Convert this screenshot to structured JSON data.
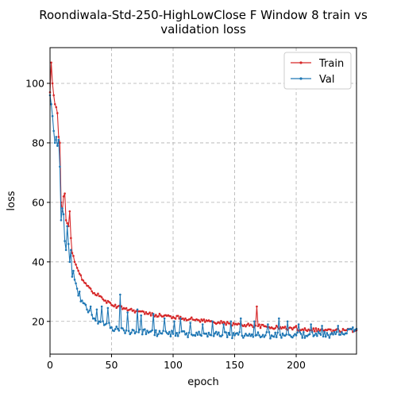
{
  "chart_data": {
    "type": "line",
    "title_lines": [
      "Roondiwala-Std-250-HighLowClose F Window 8 train vs",
      "validation loss"
    ],
    "xlabel": "epoch",
    "ylabel": "loss",
    "xlim": [
      0,
      249
    ],
    "ylim": [
      9,
      112
    ],
    "xticks": [
      0,
      50,
      100,
      150,
      200
    ],
    "yticks": [
      20,
      40,
      60,
      80,
      100
    ],
    "grid": true,
    "legend_position": "top-right",
    "series": [
      {
        "name": "Train",
        "color": "#d62728",
        "anchors": [
          [
            0,
            97
          ],
          [
            1,
            107
          ],
          [
            2,
            100
          ],
          [
            3,
            96
          ],
          [
            4,
            93
          ],
          [
            5,
            92
          ],
          [
            6,
            90
          ],
          [
            7,
            82
          ],
          [
            8,
            80
          ],
          [
            9,
            60
          ],
          [
            10,
            57
          ],
          [
            11,
            62
          ],
          [
            12,
            63
          ],
          [
            13,
            54
          ],
          [
            14,
            53
          ],
          [
            15,
            52
          ],
          [
            16,
            57
          ],
          [
            17,
            48
          ],
          [
            18,
            43
          ],
          [
            19,
            42
          ],
          [
            20,
            40
          ],
          [
            22,
            38
          ],
          [
            24,
            36
          ],
          [
            26,
            34
          ],
          [
            28,
            33
          ],
          [
            30,
            32
          ],
          [
            33,
            31
          ],
          [
            36,
            29.5
          ],
          [
            40,
            28.5
          ],
          [
            45,
            27
          ],
          [
            50,
            25.5
          ],
          [
            55,
            25
          ],
          [
            60,
            24.5
          ],
          [
            70,
            23.5
          ],
          [
            80,
            22.5
          ],
          [
            90,
            22
          ],
          [
            100,
            21.5
          ],
          [
            110,
            21
          ],
          [
            120,
            20.5
          ],
          [
            130,
            20
          ],
          [
            140,
            19.5
          ],
          [
            150,
            19
          ],
          [
            160,
            18.8
          ],
          [
            168,
            18.5
          ],
          [
            180,
            18
          ],
          [
            190,
            17.8
          ],
          [
            200,
            17.5
          ],
          [
            210,
            17.3
          ],
          [
            220,
            17.2
          ],
          [
            230,
            17
          ],
          [
            240,
            17
          ],
          [
            249,
            17
          ]
        ],
        "spikes": [
          [
            168,
            25
          ],
          [
            200,
            18.5
          ],
          [
            229,
            16
          ]
        ]
      },
      {
        "name": "Val",
        "color": "#1f77b4",
        "anchors": [
          [
            0,
            96
          ],
          [
            1,
            93
          ],
          [
            2,
            89
          ],
          [
            3,
            84
          ],
          [
            4,
            80
          ],
          [
            5,
            83
          ],
          [
            6,
            79
          ],
          [
            7,
            81
          ],
          [
            8,
            72
          ],
          [
            9,
            54
          ],
          [
            10,
            58
          ],
          [
            11,
            56
          ],
          [
            12,
            47
          ],
          [
            13,
            44
          ],
          [
            14,
            52
          ],
          [
            15,
            46
          ],
          [
            16,
            40
          ],
          [
            17,
            44
          ],
          [
            18,
            35
          ],
          [
            19,
            33
          ],
          [
            20,
            34
          ],
          [
            22,
            31
          ],
          [
            24,
            28
          ],
          [
            26,
            27
          ],
          [
            28,
            26
          ],
          [
            30,
            24
          ],
          [
            33,
            22
          ],
          [
            36,
            21
          ],
          [
            40,
            20
          ],
          [
            45,
            19
          ],
          [
            50,
            18
          ],
          [
            55,
            17.5
          ],
          [
            60,
            17
          ],
          [
            70,
            16.5
          ],
          [
            80,
            16.2
          ],
          [
            90,
            16
          ],
          [
            100,
            15.8
          ],
          [
            110,
            15.6
          ],
          [
            120,
            15.5
          ],
          [
            130,
            15.5
          ],
          [
            140,
            15.4
          ],
          [
            150,
            15.3
          ],
          [
            160,
            15.3
          ],
          [
            170,
            15.3
          ],
          [
            180,
            15.3
          ],
          [
            190,
            15.3
          ],
          [
            200,
            15.3
          ],
          [
            210,
            15.5
          ],
          [
            220,
            15.5
          ],
          [
            230,
            15.6
          ],
          [
            240,
            16
          ],
          [
            249,
            17.5
          ]
        ],
        "spikes": [
          [
            5,
            82
          ],
          [
            19,
            37
          ],
          [
            24,
            30
          ],
          [
            33,
            25
          ],
          [
            38,
            24
          ],
          [
            42,
            25
          ],
          [
            47,
            24.5
          ],
          [
            57,
            29
          ],
          [
            63,
            23
          ],
          [
            71,
            24
          ],
          [
            74,
            22
          ],
          [
            84,
            22.5
          ],
          [
            93,
            21
          ],
          [
            101,
            20
          ],
          [
            106,
            21
          ],
          [
            114,
            19.5
          ],
          [
            124,
            19
          ],
          [
            132,
            20
          ],
          [
            141,
            19
          ],
          [
            147,
            20
          ],
          [
            155,
            21
          ],
          [
            166,
            20
          ],
          [
            177,
            19
          ],
          [
            186,
            21
          ],
          [
            193,
            20
          ],
          [
            202,
            19
          ],
          [
            212,
            19
          ],
          [
            221,
            18.5
          ],
          [
            234,
            18.5
          ],
          [
            246,
            18
          ]
        ]
      }
    ]
  }
}
